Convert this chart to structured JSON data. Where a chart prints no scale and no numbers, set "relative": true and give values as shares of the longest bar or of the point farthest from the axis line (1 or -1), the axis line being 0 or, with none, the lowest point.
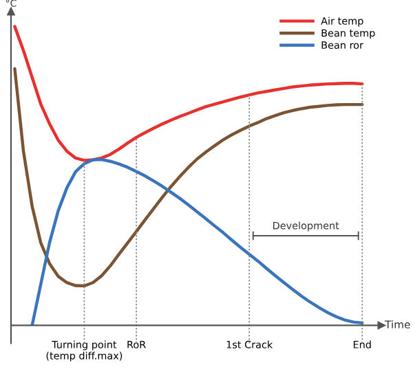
{
  "chart_data": {
    "type": "line",
    "relative": true,
    "ylabel": "°C",
    "xlabel": "Time",
    "categories": [
      null,
      null,
      null,
      null,
      null,
      null,
      null,
      null,
      "Turning point\n(temp diff.max)",
      null,
      null,
      null,
      null,
      null,
      "RoR",
      null,
      null,
      null,
      null,
      null,
      null,
      null,
      null,
      null,
      null,
      null,
      null,
      "1st Crack",
      null,
      null,
      null,
      null,
      null,
      null,
      null,
      null,
      null,
      null,
      null,
      null,
      "End"
    ],
    "series": [
      {
        "name": "Air temp",
        "color": "#e8312f",
        "values": [
          1.0,
          0.92,
          0.83,
          0.74,
          0.675,
          0.62,
          0.583,
          0.56,
          0.552,
          0.554,
          0.56,
          0.572,
          0.59,
          0.61,
          0.629,
          0.645,
          0.66,
          0.674,
          0.687,
          0.699,
          0.71,
          0.721,
          0.732,
          0.74,
          0.748,
          0.756,
          0.764,
          0.771,
          0.778,
          0.783,
          0.788,
          0.793,
          0.798,
          0.801,
          0.804,
          0.806,
          0.808,
          0.809,
          0.81,
          0.81,
          0.808
        ]
      },
      {
        "name": "Bean temp",
        "color": "#7b5434",
        "values": [
          0.859,
          0.583,
          0.399,
          0.276,
          0.207,
          0.164,
          0.143,
          0.133,
          0.132,
          0.143,
          0.166,
          0.199,
          0.238,
          0.276,
          0.314,
          0.353,
          0.391,
          0.429,
          0.465,
          0.498,
          0.529,
          0.557,
          0.58,
          0.601,
          0.621,
          0.638,
          0.653,
          0.667,
          0.679,
          0.692,
          0.702,
          0.712,
          0.719,
          0.725,
          0.73,
          0.733,
          0.736,
          0.738,
          0.739,
          0.739,
          0.739
        ]
      },
      {
        "name": "Bean ror",
        "color": "#3a74bd",
        "values": [
          null,
          null,
          0.0,
          0.138,
          0.276,
          0.383,
          0.46,
          0.514,
          0.541,
          0.554,
          0.555,
          0.549,
          0.54,
          0.529,
          0.515,
          0.5,
          0.483,
          0.465,
          0.445,
          0.425,
          0.403,
          0.38,
          0.357,
          0.333,
          0.31,
          0.285,
          0.261,
          0.238,
          0.215,
          0.19,
          0.166,
          0.143,
          0.12,
          0.098,
          0.078,
          0.06,
          0.043,
          0.029,
          0.018,
          0.011,
          0.008
        ]
      }
    ],
    "annotations": [
      "Development"
    ],
    "legend": "top right"
  }
}
